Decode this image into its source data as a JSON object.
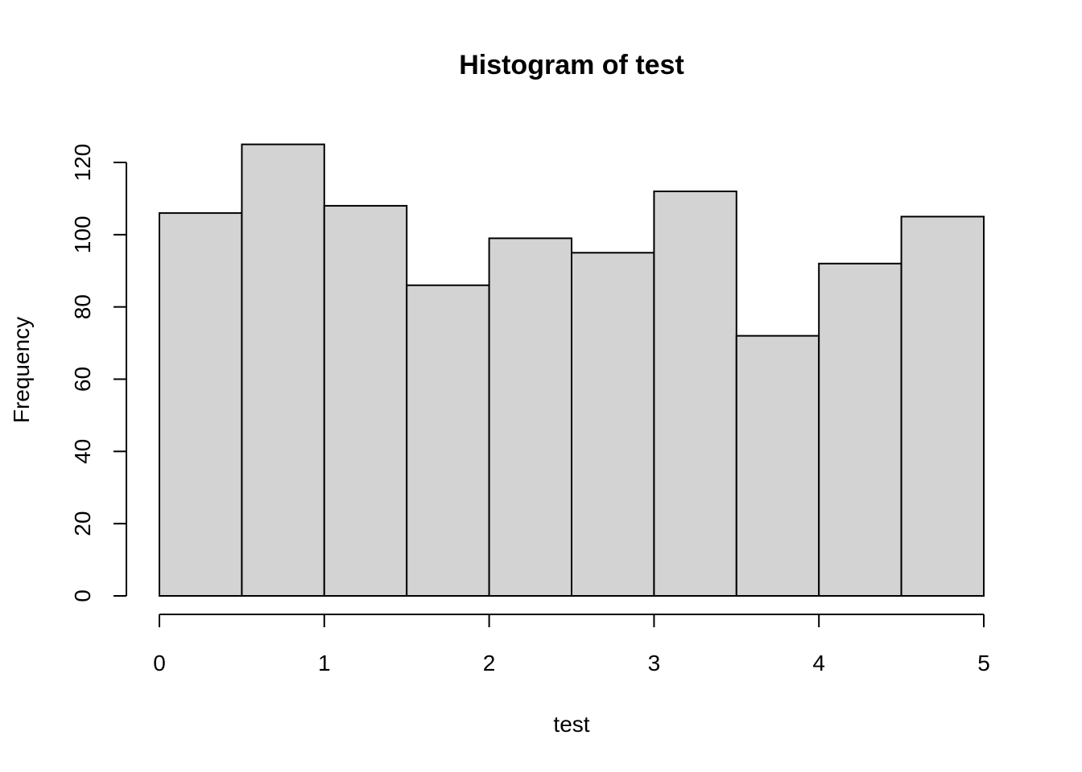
{
  "chart_data": {
    "type": "bar",
    "title": "Histogram of test",
    "xlabel": "test",
    "ylabel": "Frequency",
    "bins": [
      {
        "start": 0.0,
        "end": 0.5,
        "count": 106
      },
      {
        "start": 0.5,
        "end": 1.0,
        "count": 125
      },
      {
        "start": 1.0,
        "end": 1.5,
        "count": 108
      },
      {
        "start": 1.5,
        "end": 2.0,
        "count": 86
      },
      {
        "start": 2.0,
        "end": 2.5,
        "count": 99
      },
      {
        "start": 2.5,
        "end": 3.0,
        "count": 95
      },
      {
        "start": 3.0,
        "end": 3.5,
        "count": 112
      },
      {
        "start": 3.5,
        "end": 4.0,
        "count": 72
      },
      {
        "start": 4.0,
        "end": 4.5,
        "count": 92
      },
      {
        "start": 4.5,
        "end": 5.0,
        "count": 105
      }
    ],
    "xlim": [
      0,
      5
    ],
    "ylim": [
      0,
      120
    ],
    "x_ticks": [
      0,
      1,
      2,
      3,
      4,
      5
    ],
    "x_tick_labels": [
      "0",
      "1",
      "2",
      "3",
      "4",
      "5"
    ],
    "y_ticks": [
      0,
      20,
      40,
      60,
      80,
      100,
      120
    ],
    "y_tick_labels": [
      "0",
      "20",
      "40",
      "60",
      "80",
      "100",
      "120"
    ],
    "bar_fill": "#d3d3d3",
    "bar_stroke": "#000000",
    "grid": false,
    "legend": "none"
  }
}
